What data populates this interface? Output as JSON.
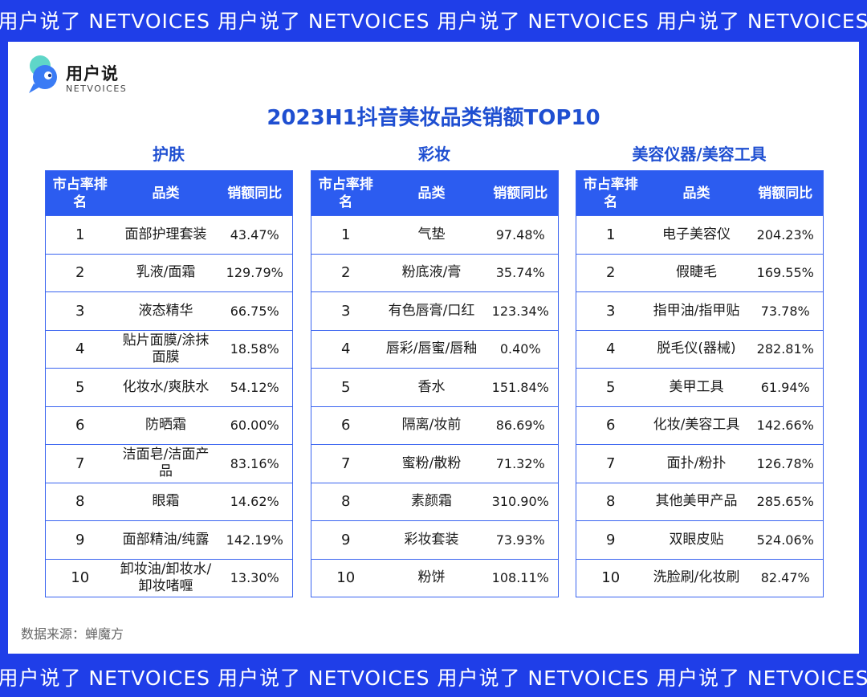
{
  "banner_text": "用户说了 NETVOICES 用户说了 NETVOICES 用户说了 NETVOICES 用户说了 NETVOICES",
  "logo": {
    "cn": "用户说",
    "en": "NETVOICES"
  },
  "title": "2023H1抖音美妆品类销额TOP10",
  "headers": {
    "rank": "市占率排名",
    "category": "品类",
    "value": "销额同比"
  },
  "sections": [
    {
      "name": "护肤",
      "rows": [
        {
          "rank": "1",
          "category": "面部护理套装",
          "value": "43.47%"
        },
        {
          "rank": "2",
          "category": "乳液/面霜",
          "value": "129.79%"
        },
        {
          "rank": "3",
          "category": "液态精华",
          "value": "66.75%"
        },
        {
          "rank": "4",
          "category": "贴片面膜/涂抹面膜",
          "value": "18.58%"
        },
        {
          "rank": "5",
          "category": "化妆水/爽肤水",
          "value": "54.12%"
        },
        {
          "rank": "6",
          "category": "防晒霜",
          "value": "60.00%"
        },
        {
          "rank": "7",
          "category": "洁面皂/洁面产品",
          "value": "83.16%"
        },
        {
          "rank": "8",
          "category": "眼霜",
          "value": "14.62%"
        },
        {
          "rank": "9",
          "category": "面部精油/纯露",
          "value": "142.19%"
        },
        {
          "rank": "10",
          "category": "卸妆油/卸妆水/卸妆啫喱",
          "value": "13.30%"
        }
      ]
    },
    {
      "name": "彩妆",
      "rows": [
        {
          "rank": "1",
          "category": "气垫",
          "value": "97.48%"
        },
        {
          "rank": "2",
          "category": "粉底液/膏",
          "value": "35.74%"
        },
        {
          "rank": "3",
          "category": "有色唇膏/口红",
          "value": "123.34%"
        },
        {
          "rank": "4",
          "category": "唇彩/唇蜜/唇釉",
          "value": "0.40%"
        },
        {
          "rank": "5",
          "category": "香水",
          "value": "151.84%"
        },
        {
          "rank": "6",
          "category": "隔离/妆前",
          "value": "86.69%"
        },
        {
          "rank": "7",
          "category": "蜜粉/散粉",
          "value": "71.32%"
        },
        {
          "rank": "8",
          "category": "素颜霜",
          "value": "310.90%"
        },
        {
          "rank": "9",
          "category": "彩妆套装",
          "value": "73.93%"
        },
        {
          "rank": "10",
          "category": "粉饼",
          "value": "108.11%"
        }
      ]
    },
    {
      "name": "美容仪器/美容工具",
      "rows": [
        {
          "rank": "1",
          "category": "电子美容仪",
          "value": "204.23%"
        },
        {
          "rank": "2",
          "category": "假睫毛",
          "value": "169.55%"
        },
        {
          "rank": "3",
          "category": "指甲油/指甲贴",
          "value": "73.78%"
        },
        {
          "rank": "4",
          "category": "脱毛仪(器械)",
          "value": "282.81%"
        },
        {
          "rank": "5",
          "category": "美甲工具",
          "value": "61.94%"
        },
        {
          "rank": "6",
          "category": "化妆/美容工具",
          "value": "142.66%"
        },
        {
          "rank": "7",
          "category": "面扑/粉扑",
          "value": "126.78%"
        },
        {
          "rank": "8",
          "category": "其他美甲产品",
          "value": "285.65%"
        },
        {
          "rank": "9",
          "category": "双眼皮贴",
          "value": "524.06%"
        },
        {
          "rank": "10",
          "category": "洗脸刷/化妆刷",
          "value": "82.47%"
        }
      ]
    }
  ],
  "source": "数据来源：蝉魔方",
  "colors": {
    "brand_blue": "#1f3ee8",
    "header_blue": "#2c5cf0",
    "title_blue": "#1f4fd1"
  }
}
